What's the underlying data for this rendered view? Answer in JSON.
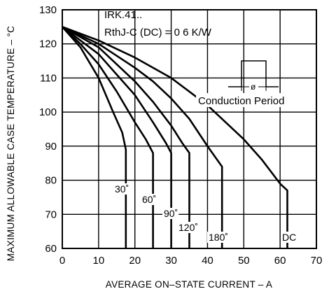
{
  "chart_data": {
    "type": "line",
    "title": "",
    "xlabel": "AVERAGE ON–STATE CURRENT – A",
    "ylabel": "MAXIMUM ALLOWABLE CASE TEMPERATURE – °C",
    "xlim": [
      0,
      70
    ],
    "ylim": [
      60,
      130
    ],
    "xticks": [
      0,
      10,
      20,
      30,
      40,
      50,
      60,
      70
    ],
    "yticks": [
      60,
      70,
      80,
      90,
      100,
      110,
      120,
      130
    ],
    "grid": true,
    "annotations": {
      "device": "IRK.41..",
      "rth": "RthJ-C (DC) = 0 6 K/W",
      "conduction": "Conduction Period",
      "inset_symbol": "ø"
    },
    "series": [
      {
        "name": "30˚",
        "points": [
          [
            0,
            125
          ],
          [
            5,
            119
          ],
          [
            10,
            110
          ],
          [
            14,
            100
          ],
          [
            16.5,
            94
          ],
          [
            17.5,
            89
          ],
          [
            17.5,
            60
          ]
        ]
      },
      {
        "name": "60˚",
        "points": [
          [
            0,
            125
          ],
          [
            5,
            120
          ],
          [
            10,
            114
          ],
          [
            15,
            106
          ],
          [
            20,
            97
          ],
          [
            23,
            92
          ],
          [
            25,
            88
          ],
          [
            25,
            60
          ]
        ]
      },
      {
        "name": "90˚",
        "points": [
          [
            0,
            125
          ],
          [
            5,
            121
          ],
          [
            10,
            117
          ],
          [
            15,
            111
          ],
          [
            20,
            105
          ],
          [
            25,
            97
          ],
          [
            28.5,
            91
          ],
          [
            30,
            88
          ],
          [
            30,
            60
          ]
        ]
      },
      {
        "name": "120˚",
        "points": [
          [
            0,
            125
          ],
          [
            10,
            119
          ],
          [
            15,
            114
          ],
          [
            20,
            109
          ],
          [
            25,
            103
          ],
          [
            30,
            96
          ],
          [
            33,
            91
          ],
          [
            35,
            88
          ],
          [
            35,
            60
          ]
        ]
      },
      {
        "name": "180˚",
        "points": [
          [
            0,
            125
          ],
          [
            10,
            120
          ],
          [
            20,
            113
          ],
          [
            25,
            109
          ],
          [
            30,
            104
          ],
          [
            35,
            98
          ],
          [
            40,
            90
          ],
          [
            44,
            84
          ],
          [
            44,
            60
          ]
        ]
      },
      {
        "name": "DC",
        "points": [
          [
            0,
            125
          ],
          [
            10,
            121
          ],
          [
            20,
            116
          ],
          [
            30,
            110
          ],
          [
            40,
            102
          ],
          [
            50,
            92
          ],
          [
            55,
            86
          ],
          [
            60,
            79
          ],
          [
            62,
            77
          ],
          [
            62,
            60
          ]
        ]
      }
    ],
    "curve_labels": [
      "30˚",
      "60˚",
      "90˚",
      "120˚",
      "180˚",
      "DC"
    ]
  }
}
